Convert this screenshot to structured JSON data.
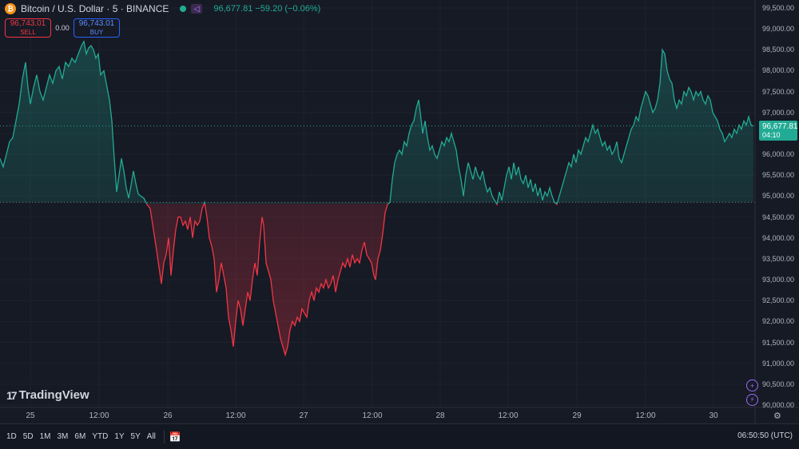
{
  "header": {
    "coin_glyph": "₿",
    "title": "Bitcoin / U.S. Dollar · 5 · BINANCE",
    "badge_glyph": "◁",
    "ohlc": "96,677.81  −59.20 (−0.06%)"
  },
  "trade": {
    "sell_price": "96,743.01",
    "sell_label": "SELL",
    "spread": "0.00",
    "buy_price": "96,743.01",
    "buy_label": "BUY"
  },
  "price_axis": [
    "99,500.00",
    "99,000.00",
    "98,500.00",
    "98,000.00",
    "97,500.00",
    "97,000.00",
    "96,500.00",
    "96,000.00",
    "95,500.00",
    "95,000.00",
    "94,500.00",
    "94,000.00",
    "93,500.00",
    "93,000.00",
    "92,500.00",
    "92,000.00",
    "91,500.00",
    "91,000.00",
    "90,500.00",
    "90,000.00"
  ],
  "last_price": {
    "value": "96,677.81",
    "countdown": "04:10"
  },
  "time_axis": [
    "25",
    "12:00",
    "26",
    "12:00",
    "27",
    "12:00",
    "28",
    "12:00",
    "29",
    "12:00",
    "30"
  ],
  "logo": {
    "mark": "17",
    "text": "TradingView"
  },
  "side_buttons": {
    "plus": "+",
    "flash": "⚡"
  },
  "gear_glyph": "⚙",
  "bottom": {
    "ranges": [
      "1D",
      "5D",
      "1M",
      "3M",
      "6M",
      "YTD",
      "1Y",
      "5Y",
      "All"
    ],
    "calendar_glyph": "📅",
    "clock": "06:50:50 (UTC)"
  },
  "colors": {
    "up": "#22ab94",
    "down": "#f23645",
    "bg": "#161a25"
  },
  "chart_data": {
    "type": "area",
    "baseline": 94850,
    "last": 96677.81,
    "ylim": [
      90000,
      99500
    ],
    "x_ticks": [
      "25",
      "12:00",
      "26",
      "12:00",
      "27",
      "12:00",
      "28",
      "12:00",
      "29",
      "12:00",
      "30"
    ],
    "points": [
      [
        0,
        95900
      ],
      [
        4,
        95700
      ],
      [
        8,
        96000
      ],
      [
        12,
        96300
      ],
      [
        16,
        96400
      ],
      [
        20,
        96800
      ],
      [
        24,
        97200
      ],
      [
        28,
        97800
      ],
      [
        32,
        98200
      ],
      [
        35,
        97600
      ],
      [
        38,
        97200
      ],
      [
        42,
        97600
      ],
      [
        46,
        97900
      ],
      [
        50,
        97500
      ],
      [
        54,
        97300
      ],
      [
        58,
        97600
      ],
      [
        62,
        97900
      ],
      [
        66,
        97700
      ],
      [
        70,
        98000
      ],
      [
        74,
        98100
      ],
      [
        78,
        97800
      ],
      [
        82,
        98200
      ],
      [
        86,
        98100
      ],
      [
        90,
        98300
      ],
      [
        94,
        98200
      ],
      [
        98,
        98400
      ],
      [
        102,
        98600
      ],
      [
        105,
        98700
      ],
      [
        108,
        98400
      ],
      [
        111,
        98550
      ],
      [
        114,
        98600
      ],
      [
        117,
        98500
      ],
      [
        120,
        98300
      ],
      [
        123,
        98400
      ],
      [
        126,
        97900
      ],
      [
        130,
        98000
      ],
      [
        134,
        97600
      ],
      [
        137,
        97300
      ],
      [
        140,
        96800
      ],
      [
        143,
        95900
      ],
      [
        146,
        95100
      ],
      [
        149,
        95500
      ],
      [
        152,
        95900
      ],
      [
        155,
        95600
      ],
      [
        158,
        95200
      ],
      [
        161,
        94950
      ],
      [
        164,
        95250
      ],
      [
        167,
        95600
      ],
      [
        170,
        95300
      ],
      [
        173,
        95050
      ],
      [
        176,
        95000
      ],
      [
        180,
        94950
      ],
      [
        184,
        94800
      ],
      [
        188,
        94700
      ],
      [
        192,
        94200
      ],
      [
        196,
        93700
      ],
      [
        199,
        93300
      ],
      [
        202,
        92900
      ],
      [
        205,
        93400
      ],
      [
        208,
        93600
      ],
      [
        211,
        94000
      ],
      [
        214,
        93100
      ],
      [
        217,
        93700
      ],
      [
        220,
        94200
      ],
      [
        223,
        94500
      ],
      [
        226,
        94500
      ],
      [
        229,
        94300
      ],
      [
        232,
        94400
      ],
      [
        235,
        94200
      ],
      [
        238,
        94500
      ],
      [
        241,
        94000
      ],
      [
        244,
        94400
      ],
      [
        247,
        94300
      ],
      [
        250,
        94400
      ],
      [
        253,
        94700
      ],
      [
        256,
        94850
      ],
      [
        259,
        94500
      ],
      [
        262,
        94000
      ],
      [
        265,
        93800
      ],
      [
        268,
        93500
      ],
      [
        271,
        92700
      ],
      [
        274,
        93000
      ],
      [
        277,
        93400
      ],
      [
        280,
        93100
      ],
      [
        283,
        92800
      ],
      [
        286,
        92100
      ],
      [
        289,
        91800
      ],
      [
        292,
        91400
      ],
      [
        295,
        92000
      ],
      [
        298,
        92500
      ],
      [
        301,
        92300
      ],
      [
        304,
        91900
      ],
      [
        307,
        92300
      ],
      [
        310,
        92700
      ],
      [
        313,
        92500
      ],
      [
        316,
        93000
      ],
      [
        319,
        93400
      ],
      [
        322,
        93100
      ],
      [
        325,
        93900
      ],
      [
        328,
        94500
      ],
      [
        330,
        94300
      ],
      [
        333,
        93400
      ],
      [
        336,
        93200
      ],
      [
        339,
        93000
      ],
      [
        342,
        92500
      ],
      [
        345,
        92200
      ],
      [
        348,
        91900
      ],
      [
        351,
        91600
      ],
      [
        354,
        91400
      ],
      [
        357,
        91200
      ],
      [
        360,
        91400
      ],
      [
        363,
        91800
      ],
      [
        366,
        92000
      ],
      [
        369,
        91900
      ],
      [
        372,
        92100
      ],
      [
        375,
        92000
      ],
      [
        378,
        92300
      ],
      [
        381,
        92200
      ],
      [
        384,
        92100
      ],
      [
        387,
        92500
      ],
      [
        390,
        92700
      ],
      [
        393,
        92500
      ],
      [
        396,
        92800
      ],
      [
        399,
        92700
      ],
      [
        402,
        92900
      ],
      [
        405,
        92800
      ],
      [
        408,
        93000
      ],
      [
        411,
        92800
      ],
      [
        414,
        92900
      ],
      [
        417,
        93100
      ],
      [
        420,
        92700
      ],
      [
        423,
        93000
      ],
      [
        426,
        93200
      ],
      [
        429,
        93400
      ],
      [
        432,
        93300
      ],
      [
        435,
        93500
      ],
      [
        438,
        93300
      ],
      [
        441,
        93600
      ],
      [
        444,
        93400
      ],
      [
        447,
        93500
      ],
      [
        450,
        93400
      ],
      [
        453,
        93700
      ],
      [
        456,
        93900
      ],
      [
        459,
        93600
      ],
      [
        462,
        93500
      ],
      [
        465,
        93400
      ],
      [
        468,
        93100
      ],
      [
        470,
        93000
      ],
      [
        473,
        93500
      ],
      [
        476,
        93700
      ],
      [
        479,
        94100
      ],
      [
        482,
        94600
      ],
      [
        485,
        94800
      ],
      [
        488,
        94850
      ],
      [
        491,
        95400
      ],
      [
        494,
        95800
      ],
      [
        497,
        96000
      ],
      [
        500,
        96100
      ],
      [
        503,
        96000
      ],
      [
        506,
        96300
      ],
      [
        509,
        96200
      ],
      [
        512,
        96500
      ],
      [
        515,
        96700
      ],
      [
        518,
        96800
      ],
      [
        521,
        97100
      ],
      [
        524,
        97300
      ],
      [
        526,
        97000
      ],
      [
        529,
        96500
      ],
      [
        532,
        96800
      ],
      [
        535,
        96400
      ],
      [
        538,
        96100
      ],
      [
        541,
        96200
      ],
      [
        544,
        96000
      ],
      [
        547,
        95900
      ],
      [
        550,
        96100
      ],
      [
        553,
        96300
      ],
      [
        556,
        96200
      ],
      [
        559,
        96400
      ],
      [
        562,
        96300
      ],
      [
        565,
        96500
      ],
      [
        568,
        96300
      ],
      [
        571,
        96100
      ],
      [
        574,
        95700
      ],
      [
        577,
        95400
      ],
      [
        580,
        95000
      ],
      [
        583,
        95500
      ],
      [
        586,
        95800
      ],
      [
        589,
        95600
      ],
      [
        592,
        95400
      ],
      [
        595,
        95700
      ],
      [
        598,
        95500
      ],
      [
        601,
        95400
      ],
      [
        604,
        95600
      ],
      [
        607,
        95300
      ],
      [
        610,
        95100
      ],
      [
        613,
        95200
      ],
      [
        616,
        95000
      ],
      [
        619,
        94900
      ],
      [
        622,
        94800
      ],
      [
        625,
        95100
      ],
      [
        628,
        94900
      ],
      [
        631,
        95200
      ],
      [
        634,
        95500
      ],
      [
        637,
        95700
      ],
      [
        640,
        95400
      ],
      [
        643,
        95800
      ],
      [
        646,
        95500
      ],
      [
        649,
        95700
      ],
      [
        652,
        95400
      ],
      [
        655,
        95300
      ],
      [
        658,
        95500
      ],
      [
        661,
        95200
      ],
      [
        664,
        95400
      ],
      [
        667,
        95100
      ],
      [
        670,
        95300
      ],
      [
        673,
        95000
      ],
      [
        676,
        95200
      ],
      [
        679,
        94900
      ],
      [
        682,
        95100
      ],
      [
        685,
        95000
      ],
      [
        688,
        95200
      ],
      [
        691,
        95000
      ],
      [
        694,
        94850
      ],
      [
        697,
        94800
      ],
      [
        700,
        95000
      ],
      [
        703,
        95200
      ],
      [
        706,
        95400
      ],
      [
        709,
        95600
      ],
      [
        712,
        95800
      ],
      [
        715,
        95700
      ],
      [
        718,
        96000
      ],
      [
        721,
        95800
      ],
      [
        724,
        96100
      ],
      [
        727,
        96000
      ],
      [
        730,
        96200
      ],
      [
        733,
        96400
      ],
      [
        736,
        96300
      ],
      [
        739,
        96500
      ],
      [
        742,
        96700
      ],
      [
        745,
        96500
      ],
      [
        748,
        96600
      ],
      [
        751,
        96400
      ],
      [
        754,
        96200
      ],
      [
        757,
        96300
      ],
      [
        760,
        96100
      ],
      [
        763,
        96200
      ],
      [
        766,
        96000
      ],
      [
        769,
        96100
      ],
      [
        772,
        96300
      ],
      [
        775,
        95900
      ],
      [
        778,
        95800
      ],
      [
        781,
        96000
      ],
      [
        784,
        96200
      ],
      [
        787,
        96400
      ],
      [
        790,
        96600
      ],
      [
        793,
        96700
      ],
      [
        796,
        96900
      ],
      [
        799,
        96800
      ],
      [
        802,
        97100
      ],
      [
        805,
        97300
      ],
      [
        808,
        97500
      ],
      [
        811,
        97400
      ],
      [
        814,
        97200
      ],
      [
        817,
        97000
      ],
      [
        820,
        97100
      ],
      [
        823,
        97300
      ],
      [
        826,
        97700
      ],
      [
        829,
        98500
      ],
      [
        832,
        98400
      ],
      [
        835,
        98000
      ],
      [
        838,
        97800
      ],
      [
        841,
        97700
      ],
      [
        844,
        97300
      ],
      [
        847,
        97100
      ],
      [
        850,
        97300
      ],
      [
        853,
        97200
      ],
      [
        856,
        97500
      ],
      [
        859,
        97400
      ],
      [
        862,
        97600
      ],
      [
        865,
        97500
      ],
      [
        868,
        97300
      ],
      [
        871,
        97500
      ],
      [
        874,
        97400
      ],
      [
        877,
        97500
      ],
      [
        880,
        97300
      ],
      [
        883,
        97200
      ],
      [
        886,
        97400
      ],
      [
        889,
        97300
      ],
      [
        892,
        97000
      ],
      [
        895,
        96900
      ],
      [
        898,
        96800
      ],
      [
        901,
        96600
      ],
      [
        904,
        96500
      ],
      [
        907,
        96300
      ],
      [
        910,
        96400
      ],
      [
        913,
        96500
      ],
      [
        916,
        96400
      ],
      [
        919,
        96600
      ],
      [
        922,
        96500
      ],
      [
        925,
        96700
      ],
      [
        928,
        96600
      ],
      [
        931,
        96800
      ],
      [
        934,
        96700
      ],
      [
        937,
        96900
      ],
      [
        940,
        96700
      ],
      [
        943,
        96677
      ]
    ]
  }
}
